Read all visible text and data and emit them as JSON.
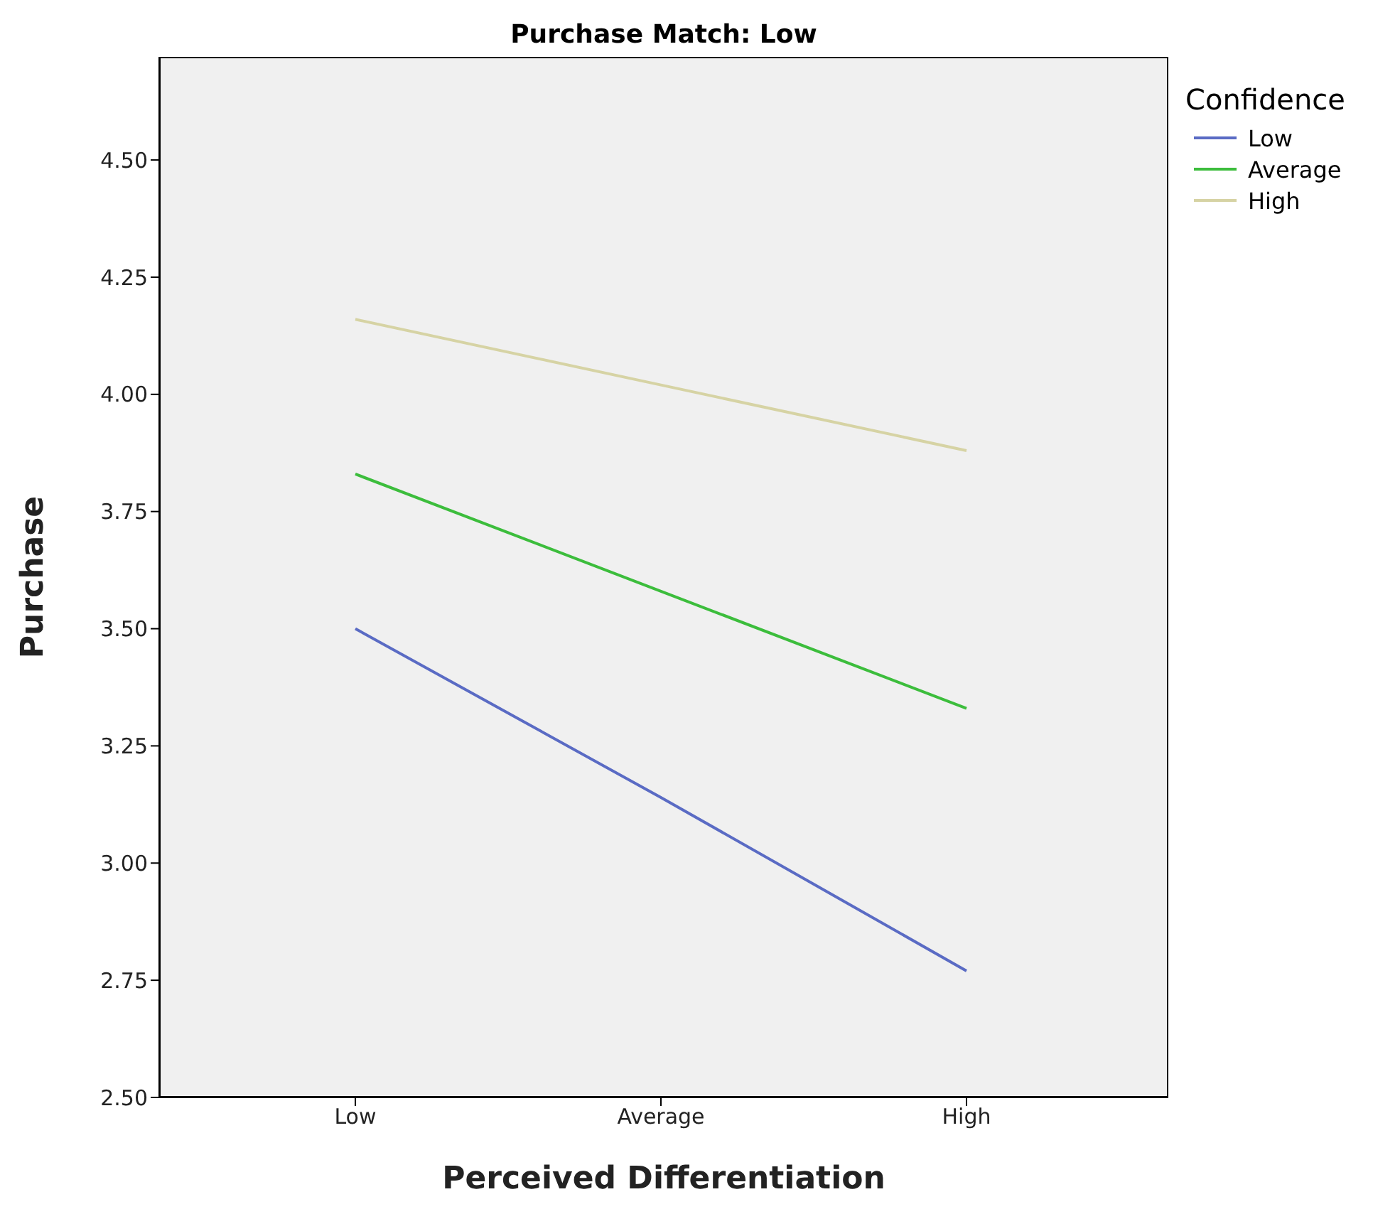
{
  "chart_data": {
    "type": "line",
    "title": "Purchase Match: Low",
    "xlabel": "Perceived Differentiation",
    "ylabel": "Purchase",
    "legend_title": "Confidence",
    "categories": [
      "Low",
      "Average",
      "High"
    ],
    "series": [
      {
        "name": "Low",
        "color": "#5a6bc4",
        "values": [
          3.5,
          3.14,
          2.77
        ]
      },
      {
        "name": "Average",
        "color": "#3cbd3c",
        "values": [
          3.83,
          3.58,
          3.33
        ]
      },
      {
        "name": "High",
        "color": "#d6d3a4",
        "values": [
          4.16,
          4.02,
          3.88
        ]
      }
    ],
    "ylim": [
      2.5,
      4.72
    ],
    "yticks": [
      {
        "value": 2.5,
        "label": "2.50"
      },
      {
        "value": 2.75,
        "label": "2.75"
      },
      {
        "value": 3,
        "label": "3.00"
      },
      {
        "value": 3.25,
        "label": "3.25"
      },
      {
        "value": 3.5,
        "label": "3.50"
      },
      {
        "value": 3.75,
        "label": "3.75"
      },
      {
        "value": 4,
        "label": "4.00"
      },
      {
        "value": 4.25,
        "label": "4.25"
      },
      {
        "value": 4.5,
        "label": "4.50"
      }
    ],
    "grid": false,
    "legend": "top right",
    "marker": "none",
    "line_style": "solid"
  }
}
